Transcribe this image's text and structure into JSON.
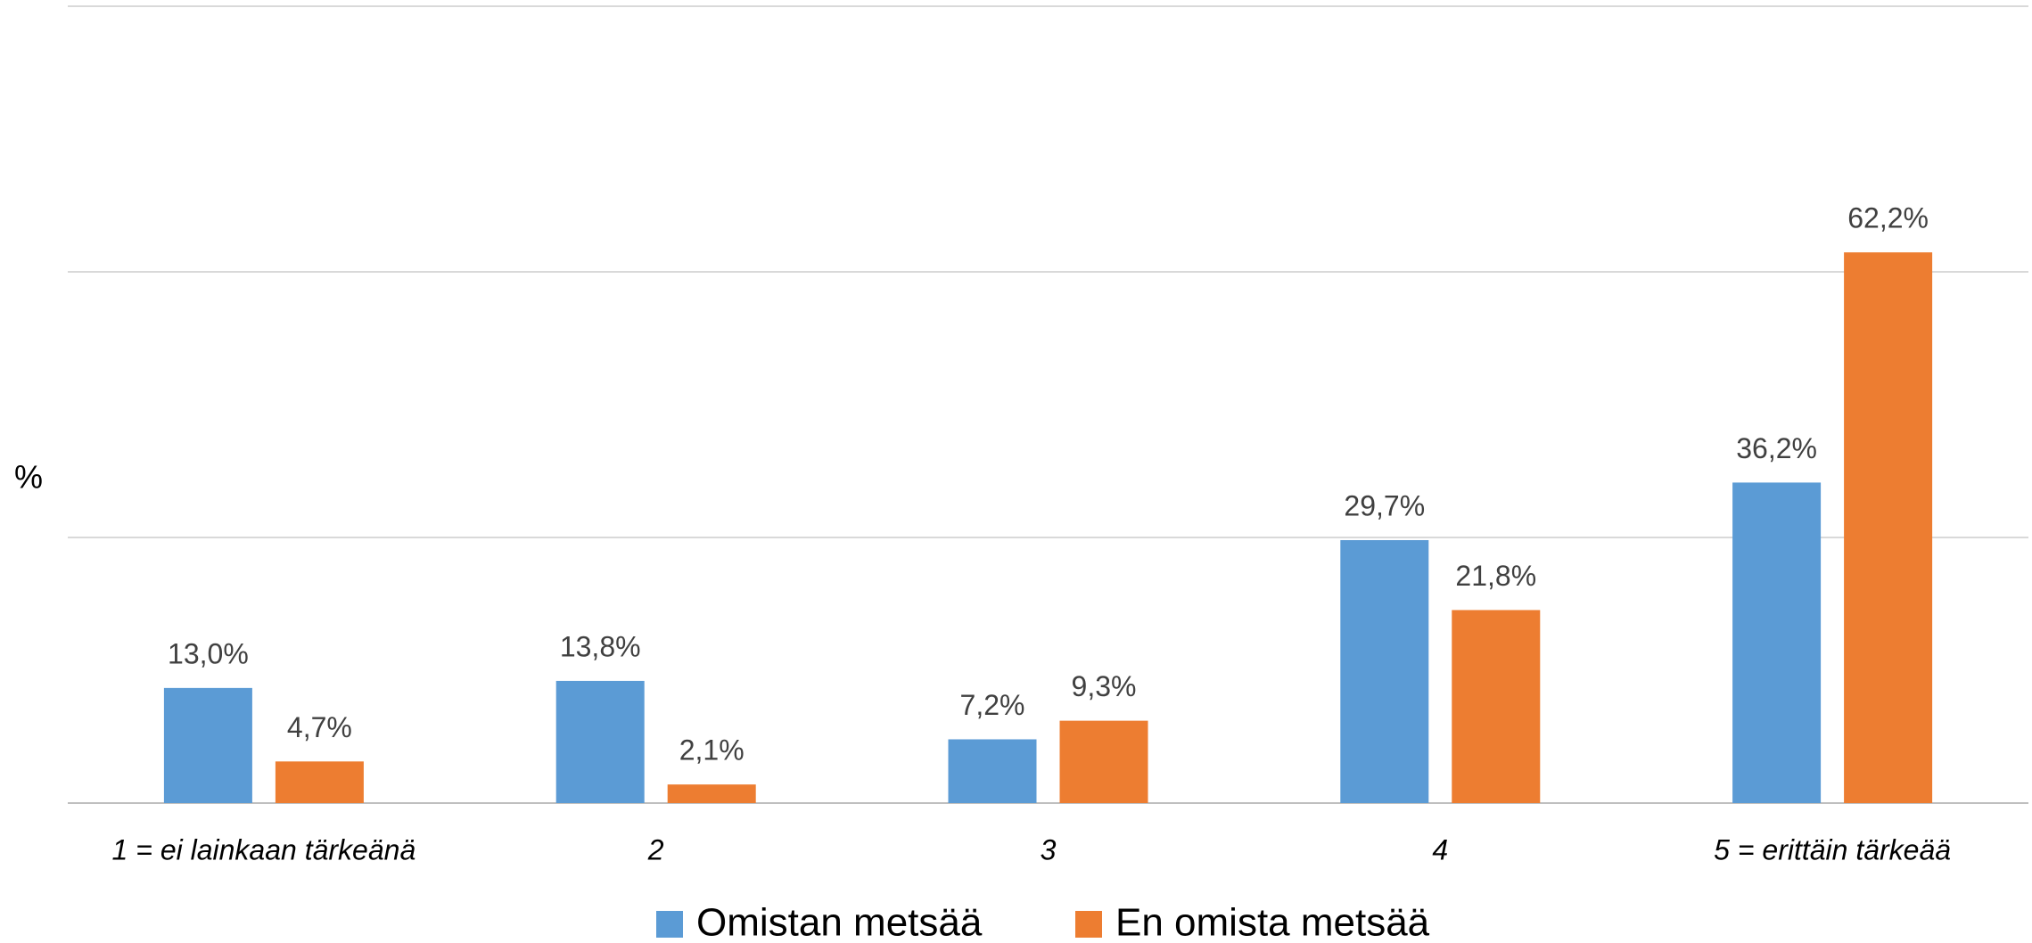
{
  "chart_data": {
    "type": "bar",
    "y_label": "%",
    "categories": [
      "1 = ei lainkaan tärkeänä",
      "2",
      "3",
      "4",
      "5 = erittäin tärkeää"
    ],
    "series": [
      {
        "name": "Omistan metsää",
        "color": "#5b9bd5",
        "values": [
          13.0,
          13.8,
          7.2,
          29.7,
          36.2
        ],
        "value_labels": [
          "13,0%",
          "13,8%",
          "7,2%",
          "29,7%",
          "36,2%"
        ]
      },
      {
        "name": "En omista metsää",
        "color": "#ed7d31",
        "values": [
          4.7,
          2.1,
          9.3,
          21.8,
          62.2
        ],
        "value_labels": [
          "4,7%",
          "2,1%",
          "9,3%",
          "21,8%",
          "62,2%"
        ]
      }
    ],
    "ylim": [
      0,
      90
    ],
    "yticks": [
      0,
      30,
      60,
      90
    ],
    "grid": true,
    "legend": "bottom"
  }
}
